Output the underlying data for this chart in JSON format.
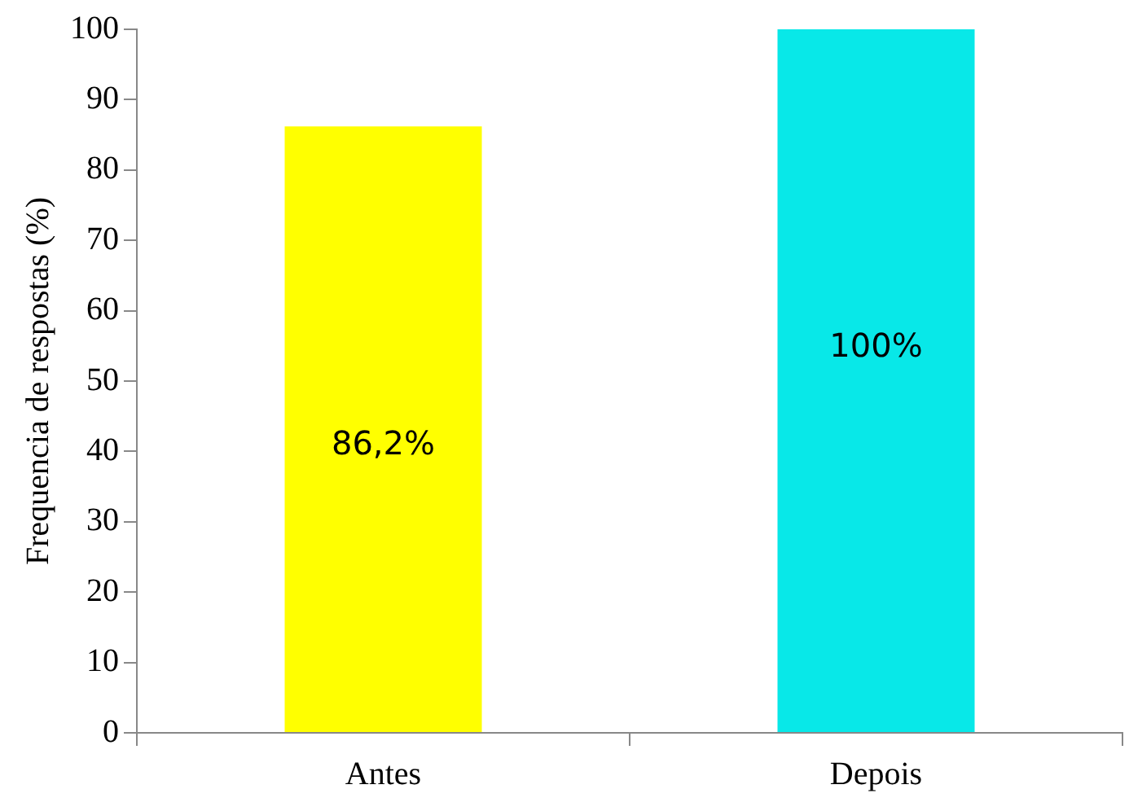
{
  "chart_data": {
    "type": "bar",
    "ylabel": "Frequencia de respostas (%)",
    "categories": [
      "Antes",
      "Depois"
    ],
    "values": [
      86.2,
      100
    ],
    "colors": [
      "#ffff00",
      "#08e8e8"
    ],
    "value_labels": [
      "86,2%",
      "100%"
    ],
    "ylim": [
      0,
      100
    ],
    "yticks": [
      0,
      10,
      20,
      30,
      40,
      50,
      60,
      70,
      80,
      90,
      100
    ],
    "grid": false,
    "legend": false
  }
}
